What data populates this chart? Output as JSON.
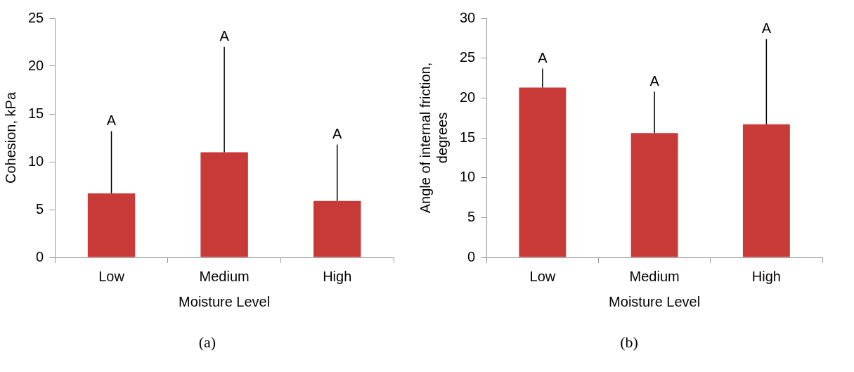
{
  "chart_data": [
    {
      "type": "bar",
      "xlabel": "Moisture Level",
      "ylabel": "Cohesion, kPa",
      "categories": [
        "Low",
        "Medium",
        "High"
      ],
      "values": [
        6.7,
        11.0,
        5.9
      ],
      "color": "#c83a38",
      "errors": [
        [
          6.7,
          13.2
        ],
        [
          11.0,
          22.0
        ],
        [
          5.9,
          11.8
        ]
      ],
      "ylim": [
        0,
        25
      ],
      "yticks": [
        0,
        5,
        10,
        15,
        20,
        25
      ],
      "grid": false,
      "legend": false,
      "annotations": [
        {
          "text": "A",
          "x": "Low",
          "y": 13.2
        },
        {
          "text": "A",
          "x": "Medium",
          "y": 22.0
        },
        {
          "text": "A",
          "x": "High",
          "y": 11.8
        },
        "(a)"
      ]
    },
    {
      "type": "bar",
      "xlabel": "Moisture Level",
      "ylabel": "Angle of internal friction, degrees",
      "categories": [
        "Low",
        "Medium",
        "High"
      ],
      "values": [
        21.3,
        15.6,
        16.7
      ],
      "color": "#c83a38",
      "errors": [
        [
          21.3,
          23.7
        ],
        [
          15.6,
          20.8
        ],
        [
          16.7,
          27.4
        ]
      ],
      "ylim": [
        0,
        30
      ],
      "yticks": [
        0,
        5,
        10,
        15,
        20,
        25,
        30
      ],
      "grid": false,
      "legend": false,
      "annotations": [
        {
          "text": "A",
          "x": "Low",
          "y": 23.7
        },
        {
          "text": "A",
          "x": "Medium",
          "y": 20.8
        },
        {
          "text": "A",
          "x": "High",
          "y": 27.4
        },
        "(b)"
      ]
    }
  ]
}
